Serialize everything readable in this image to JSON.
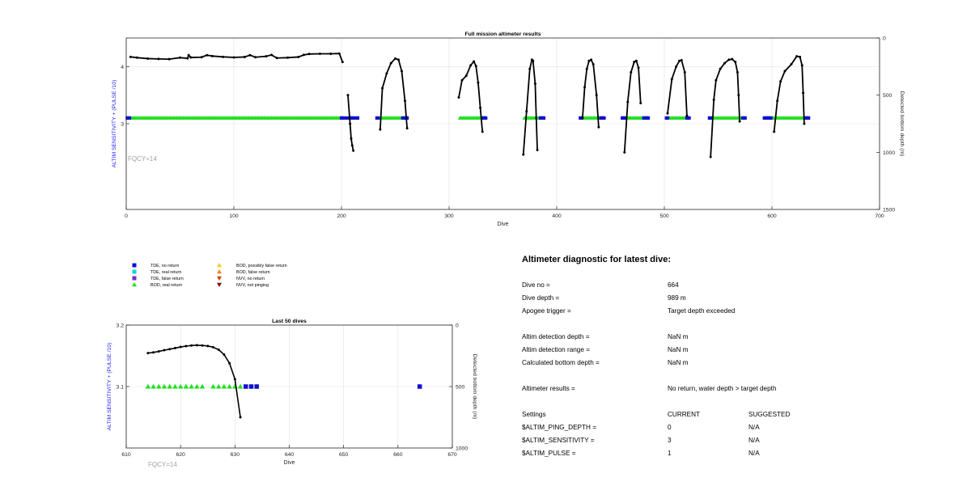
{
  "colors": {
    "axis": "#262626",
    "grid": "#e3e3e3",
    "profile": "#000000",
    "left_axis_label": "#2626ff",
    "fqcy": "#a0a0a0",
    "tde_no_return": "#1010d0",
    "tde_real_return": "#10d8d8",
    "tde_false_return": "#7a2ad8",
    "bod_real_return": "#22e022",
    "bod_possibly_false": "#f0d020",
    "bod_false_return": "#f08a10",
    "nvv_no_return": "#d04010",
    "nvv_not_pinging": "#801010"
  },
  "legend": [
    {
      "label": "TDE, no return",
      "marker": "square",
      "color": "#1010d0"
    },
    {
      "label": "TDE, real return",
      "marker": "square",
      "color": "#10d8d8"
    },
    {
      "label": "TDE, false return",
      "marker": "square",
      "color": "#7a2ad8"
    },
    {
      "label": "BOD, real return",
      "marker": "triangle-up",
      "color": "#22e022"
    },
    {
      "label": "BOD, possibly false return",
      "marker": "triangle-up",
      "color": "#f0d020"
    },
    {
      "label": "BOD, false return",
      "marker": "triangle-up",
      "color": "#f08a10"
    },
    {
      "label": "NVV, no return",
      "marker": "triangle-down",
      "color": "#d04010"
    },
    {
      "label": "NVV, not pinging",
      "marker": "triangle-down",
      "color": "#801010"
    }
  ],
  "chart_data": [
    {
      "type": "line",
      "title": "Full mission altimeter results",
      "xlabel": "Dive",
      "ylabel_left": "ALTIM SENSITIVITY + (PULSE /10)",
      "ylabel_right": "Detected bottom depth (m)",
      "annotation": "FQCY=14",
      "xlim": [
        0,
        700
      ],
      "xticks": [
        0,
        100,
        200,
        300,
        400,
        500,
        600,
        700
      ],
      "ylim_left": [
        1.5,
        4.5
      ],
      "yticks_left": [
        3,
        4
      ],
      "ylim_right": [
        0,
        1500
      ],
      "yticks_right": [
        0,
        500,
        1000,
        1500
      ],
      "right_axis_reversed": true,
      "grid": true,
      "marker_series": [
        {
          "name": "BOD, real return",
          "marker": "triangle-up",
          "color": "#22e022",
          "y": 3.1,
          "ranges": [
            [
              5,
              198
            ],
            [
              212,
              213
            ],
            [
              236,
              256
            ],
            [
              310,
              330
            ],
            [
              370,
              384
            ],
            [
              425,
              440
            ],
            [
              465,
              480
            ],
            [
              505,
              520
            ],
            [
              545,
              572
            ],
            [
              600,
              630
            ]
          ]
        },
        {
          "name": "TDE, no return",
          "marker": "square",
          "color": "#1010d0",
          "y": 3.1,
          "x": [
            1,
            2,
            3,
            200,
            201,
            202,
            205,
            208,
            209,
            210,
            211,
            214,
            215,
            233,
            234,
            257,
            258,
            259,
            260,
            261,
            331,
            332,
            333,
            334,
            385,
            386,
            387,
            388,
            422,
            423,
            441,
            442,
            443,
            444,
            461,
            462,
            463,
            481,
            482,
            483,
            484,
            485,
            502,
            503,
            521,
            522,
            523,
            542,
            543,
            573,
            574,
            575,
            593,
            594,
            595,
            596,
            597,
            598,
            599,
            631,
            632,
            633,
            634
          ]
        }
      ],
      "profiles": [
        {
          "name": "bottom depth",
          "color": "#000000",
          "x": [
            4,
            10,
            20,
            30,
            40,
            50,
            57,
            58,
            60,
            70,
            75,
            80,
            90,
            100,
            110,
            115,
            120,
            130,
            135,
            140,
            150,
            160,
            165,
            170,
            180,
            190,
            198,
            201
          ],
          "y": [
            165,
            172,
            180,
            183,
            185,
            172,
            178,
            150,
            170,
            168,
            150,
            158,
            165,
            170,
            166,
            150,
            168,
            160,
            148,
            175,
            172,
            166,
            148,
            140,
            138,
            138,
            136,
            210
          ]
        },
        {
          "name": "bottom depth",
          "color": "#000000",
          "x": [
            206,
            208,
            209,
            210,
            211
          ],
          "y": [
            500,
            750,
            880,
            940,
            985
          ]
        },
        {
          "name": "bottom depth",
          "color": "#000000",
          "x": [
            236,
            238,
            242,
            246,
            250,
            253,
            256,
            259,
            261
          ],
          "y": [
            800,
            440,
            310,
            220,
            180,
            190,
            290,
            550,
            790
          ]
        },
        {
          "name": "bottom depth",
          "color": "#000000",
          "x": [
            309,
            312,
            316,
            320,
            323,
            325,
            327,
            329,
            331
          ],
          "y": [
            520,
            370,
            330,
            240,
            205,
            245,
            390,
            610,
            820
          ]
        },
        {
          "name": "bottom depth",
          "color": "#000000",
          "x": [
            369,
            372,
            375,
            377,
            378,
            380,
            381,
            382
          ],
          "y": [
            1020,
            640,
            270,
            190,
            200,
            400,
            700,
            980
          ]
        },
        {
          "name": "bottom depth",
          "color": "#000000",
          "x": [
            424,
            426,
            428,
            430,
            432,
            434,
            437,
            439
          ],
          "y": [
            700,
            430,
            270,
            200,
            190,
            230,
            500,
            780
          ]
        },
        {
          "name": "bottom depth",
          "color": "#000000",
          "x": [
            463,
            466,
            469,
            472,
            474,
            476,
            478
          ],
          "y": [
            1000,
            560,
            300,
            210,
            200,
            260,
            570
          ]
        },
        {
          "name": "bottom depth",
          "color": "#000000",
          "x": [
            503,
            507,
            511,
            514,
            516,
            519,
            521
          ],
          "y": [
            660,
            360,
            250,
            200,
            195,
            300,
            680
          ]
        },
        {
          "name": "bottom depth",
          "color": "#000000",
          "x": [
            543,
            546,
            548,
            552,
            556,
            560,
            563,
            566,
            568,
            569,
            570
          ],
          "y": [
            1040,
            540,
            370,
            270,
            220,
            190,
            185,
            210,
            300,
            500,
            730
          ]
        },
        {
          "name": "bottom depth",
          "color": "#000000",
          "x": [
            602,
            605,
            608,
            612,
            618,
            623,
            626,
            628,
            629,
            630
          ],
          "y": [
            820,
            550,
            380,
            290,
            230,
            160,
            165,
            240,
            480,
            750
          ]
        }
      ]
    },
    {
      "type": "line",
      "title": "Last 50 dives",
      "xlabel": "Dive",
      "ylabel_left": "ALTIM SENSITIVITY + (PULSE /10)",
      "ylabel_right": "Detected bottom depth (m)",
      "annotation": "FQCY=14",
      "xlim": [
        610,
        670
      ],
      "xticks": [
        610,
        620,
        630,
        640,
        650,
        660,
        670
      ],
      "ylim_left": [
        3.0,
        3.2
      ],
      "yticks_left": [
        3.1,
        3.2
      ],
      "ylim_right": [
        0,
        1000
      ],
      "yticks_right": [
        0,
        500,
        1000
      ],
      "right_axis_reversed": true,
      "grid": true,
      "marker_series": [
        {
          "name": "BOD, real return",
          "marker": "triangle-up",
          "color": "#22e022",
          "y": 3.1,
          "x": [
            614,
            615,
            616,
            617,
            618,
            619,
            620,
            621,
            622,
            623,
            624,
            626,
            627,
            628,
            629,
            630,
            631
          ]
        },
        {
          "name": "TDE, no return",
          "marker": "square",
          "color": "#1010d0",
          "y": 3.1,
          "x": [
            632,
            633,
            634,
            664
          ]
        }
      ],
      "profiles": [
        {
          "name": "bottom depth",
          "color": "#000000",
          "x": [
            614,
            615,
            616,
            617,
            618,
            619,
            620,
            621,
            622,
            623,
            624,
            625,
            626,
            627,
            628,
            629,
            630,
            631
          ],
          "y": [
            228,
            222,
            214,
            204,
            196,
            187,
            178,
            171,
            166,
            164,
            166,
            170,
            180,
            200,
            240,
            310,
            440,
            750
          ]
        }
      ]
    }
  ],
  "diagnostic": {
    "title": "Altimeter diagnostic for latest dive:",
    "rows": [
      {
        "label": "Dive no =",
        "value": "664",
        "suggested": ""
      },
      {
        "label": "Dive depth =",
        "value": "989 m",
        "suggested": ""
      },
      {
        "label": "Apogee trigger =",
        "value": "Target depth exceeded",
        "suggested": ""
      },
      {
        "label": "Altim detection depth =",
        "value": "NaN m",
        "suggested": ""
      },
      {
        "label": "Altim detection range =",
        "value": "NaN m",
        "suggested": ""
      },
      {
        "label": "Calculated bottom depth =",
        "value": "NaN m",
        "suggested": ""
      },
      {
        "label": "Altimeter results =",
        "value": "No return, water depth > target depth",
        "suggested": ""
      },
      {
        "label": "Settings",
        "value": "CURRENT",
        "suggested": "SUGGESTED"
      },
      {
        "label": "$ALTIM_PING_DEPTH =",
        "value": "0",
        "suggested": "N/A"
      },
      {
        "label": "$ALTIM_SENSITIVITY =",
        "value": "3",
        "suggested": "N/A"
      },
      {
        "label": "$ALTIM_PULSE =",
        "value": "1",
        "suggested": "N/A"
      }
    ]
  }
}
